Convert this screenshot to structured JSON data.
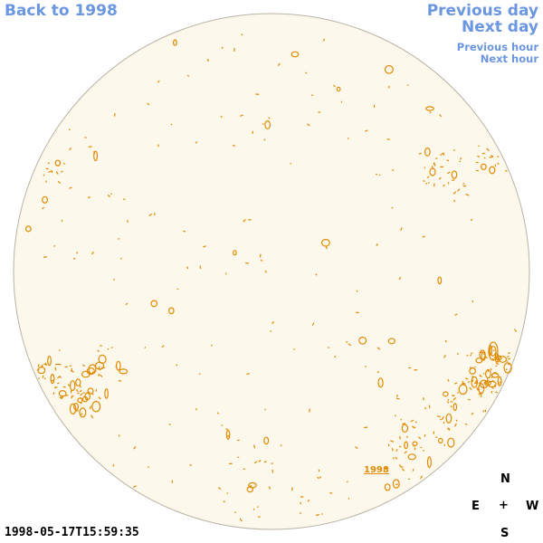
{
  "nav": {
    "back": "Back to 1998",
    "previous_day": "Previous day",
    "next_day": "Next day",
    "previous_hour": "Previous hour",
    "next_hour": "Next hour"
  },
  "timestamp": "1998-05-17T15:59:35",
  "year_label": "1998",
  "compass": {
    "north": "N",
    "east": "E",
    "center": "+",
    "west": "W",
    "south": "S"
  },
  "colors": {
    "disk_fill": "#fdf8ec",
    "disk_edge": "#b9b3a6",
    "contour": "#e08a00",
    "link": "#6b96e0"
  }
}
